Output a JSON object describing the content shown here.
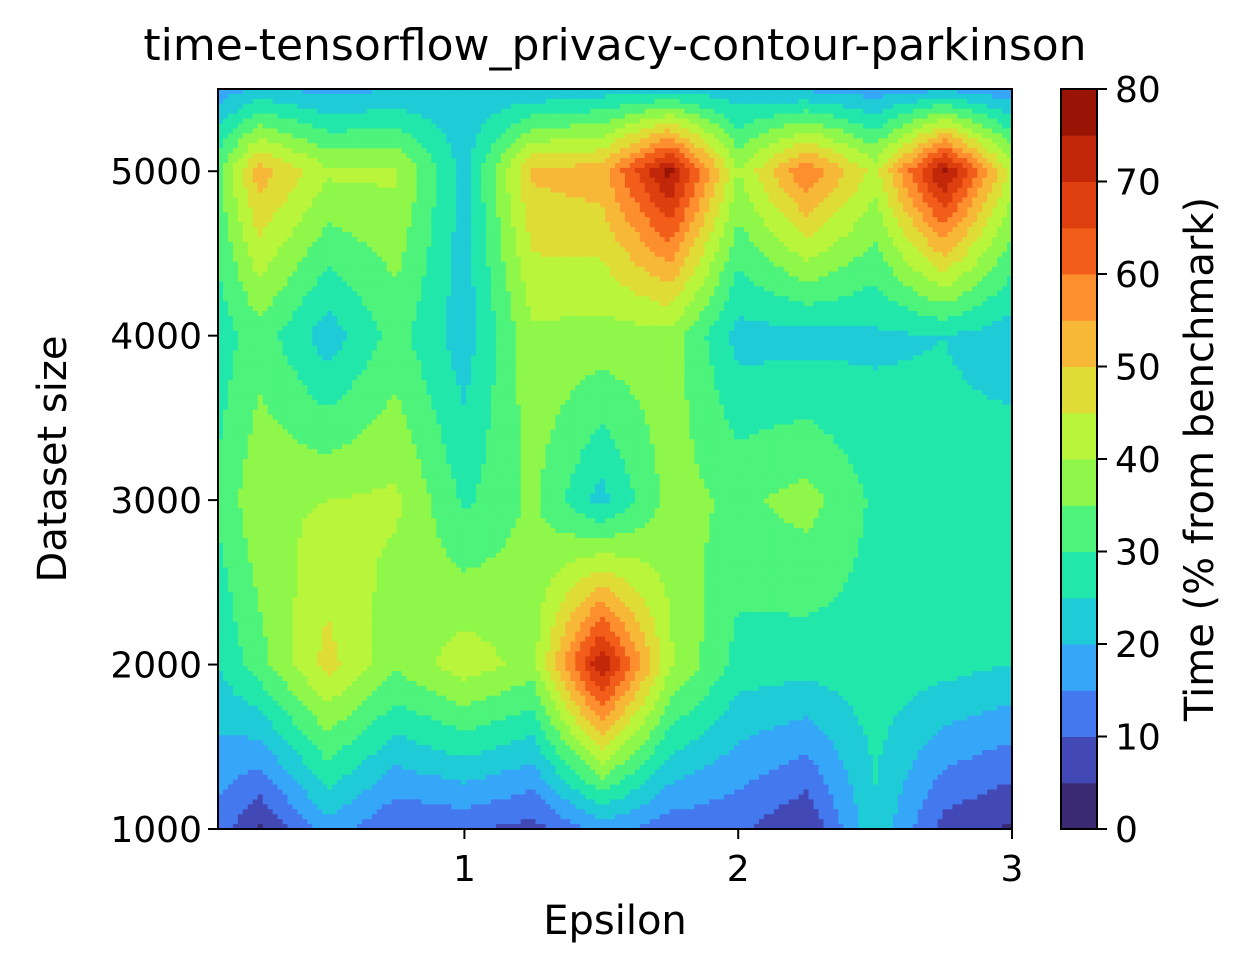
{
  "chart_data": {
    "type": "contour",
    "title": "time-tensorflow_privacy-contour-parkinson",
    "xlabel": "Epsilon",
    "ylabel": "Dataset size",
    "colorbar_label": "Time (% from benchmark)",
    "xlim": [
      0.1,
      3.0
    ],
    "ylim": [
      1000,
      5500
    ],
    "xticks": [
      1,
      2,
      3
    ],
    "yticks": [
      1000,
      2000,
      3000,
      4000,
      5000
    ],
    "levels": [
      0,
      5,
      10,
      15,
      20,
      25,
      30,
      35,
      40,
      45,
      50,
      55,
      60,
      65,
      70,
      75,
      80
    ],
    "level_colors": [
      "#3a2a74",
      "#4249b6",
      "#4478ee",
      "#36a7f8",
      "#1fcbd6",
      "#22e7ab",
      "#4df37a",
      "#8ef74a",
      "#b9f53a",
      "#e0dc36",
      "#f7b838",
      "#fd8f2e",
      "#f35d1a",
      "#de3f0e",
      "#c2270a",
      "#9a1405"
    ],
    "colorbar_ticks": [
      0,
      10,
      20,
      30,
      40,
      50,
      60,
      70,
      80
    ],
    "x": [
      0.1,
      0.25,
      0.5,
      0.75,
      1.0,
      1.25,
      1.5,
      1.75,
      2.0,
      2.25,
      2.5,
      2.75,
      3.0
    ],
    "y": [
      1000,
      2000,
      3000,
      4000,
      5000,
      5500
    ],
    "z": [
      [
        13,
        4,
        18,
        10,
        11,
        8,
        17,
        12,
        11,
        5,
        24,
        8,
        4
      ],
      [
        25,
        33,
        47,
        36,
        43,
        38,
        75,
        41,
        28,
        27,
        28,
        27,
        25
      ],
      [
        31,
        39,
        40,
        41,
        29,
        36,
        23,
        37,
        34,
        37,
        29,
        27,
        29
      ],
      [
        27,
        33,
        22,
        32,
        22,
        39,
        38,
        38,
        23,
        23,
        24,
        25,
        22
      ],
      [
        34,
        53,
        41,
        41,
        23,
        51,
        53,
        77,
        40,
        60,
        43,
        77,
        43
      ],
      [
        17,
        21,
        18,
        20,
        21,
        20,
        22,
        23,
        21,
        19,
        17,
        19,
        16
      ]
    ]
  }
}
